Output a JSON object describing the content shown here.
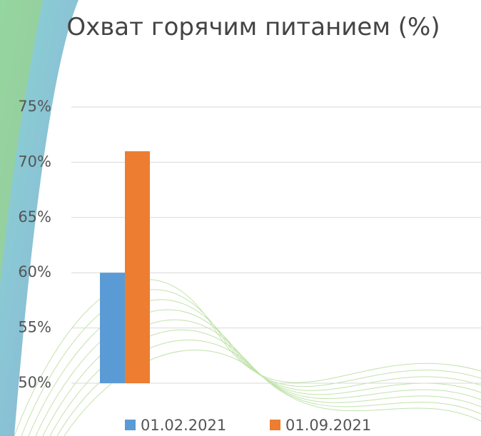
{
  "chart_data": {
    "type": "bar",
    "title": "Охват горячим питанием (%)",
    "categories": [
      null
    ],
    "series": [
      {
        "name": "01.02.2021",
        "color": "#5b9bd5",
        "values": [
          60
        ]
      },
      {
        "name": "01.09.2021",
        "color": "#ed7d31",
        "values": [
          71
        ]
      }
    ],
    "ylim": [
      50,
      75
    ],
    "yticks": [
      {
        "value": 50,
        "label": "50%"
      },
      {
        "value": 55,
        "label": "55%"
      },
      {
        "value": 60,
        "label": "60%"
      },
      {
        "value": 65,
        "label": "65%"
      },
      {
        "value": 70,
        "label": "70%"
      },
      {
        "value": 75,
        "label": "75%"
      }
    ],
    "grid": true,
    "legend": "bottom"
  }
}
